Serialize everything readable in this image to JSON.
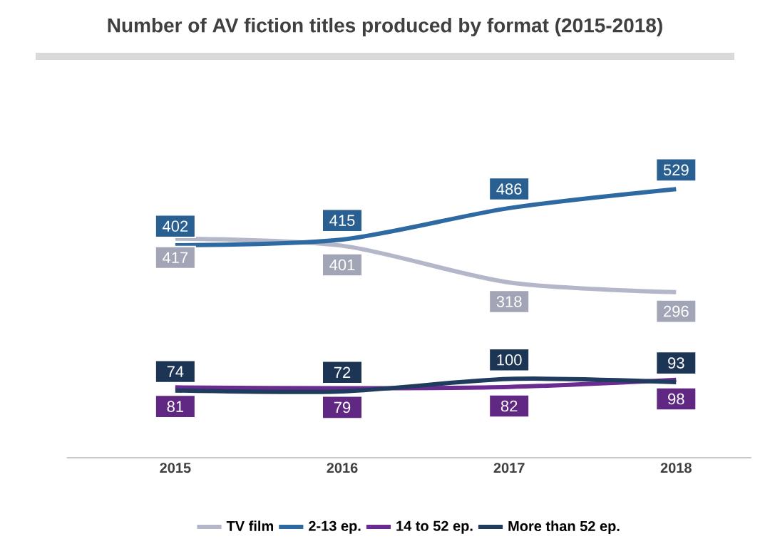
{
  "chart_data": {
    "type": "line",
    "title": "Number of AV fiction titles produced by format (2015-2018)",
    "categories": [
      "2015",
      "2016",
      "2017",
      "2018"
    ],
    "series": [
      {
        "name": "TV film",
        "color": "#b4b7c9",
        "values": [
          417,
          401,
          318,
          296
        ]
      },
      {
        "name": "2-13 ep.",
        "color": "#2e6aa1",
        "values": [
          402,
          415,
          486,
          529
        ]
      },
      {
        "name": "14 to 52 ep.",
        "color": "#6b2c91",
        "values": [
          81,
          79,
          82,
          98
        ]
      },
      {
        "name": "More than 52 ep.",
        "color": "#1f3b5e",
        "values": [
          74,
          72,
          100,
          93
        ]
      }
    ],
    "data_labels": true,
    "legend": "bottom",
    "marker": "none",
    "line_style": "solid"
  }
}
